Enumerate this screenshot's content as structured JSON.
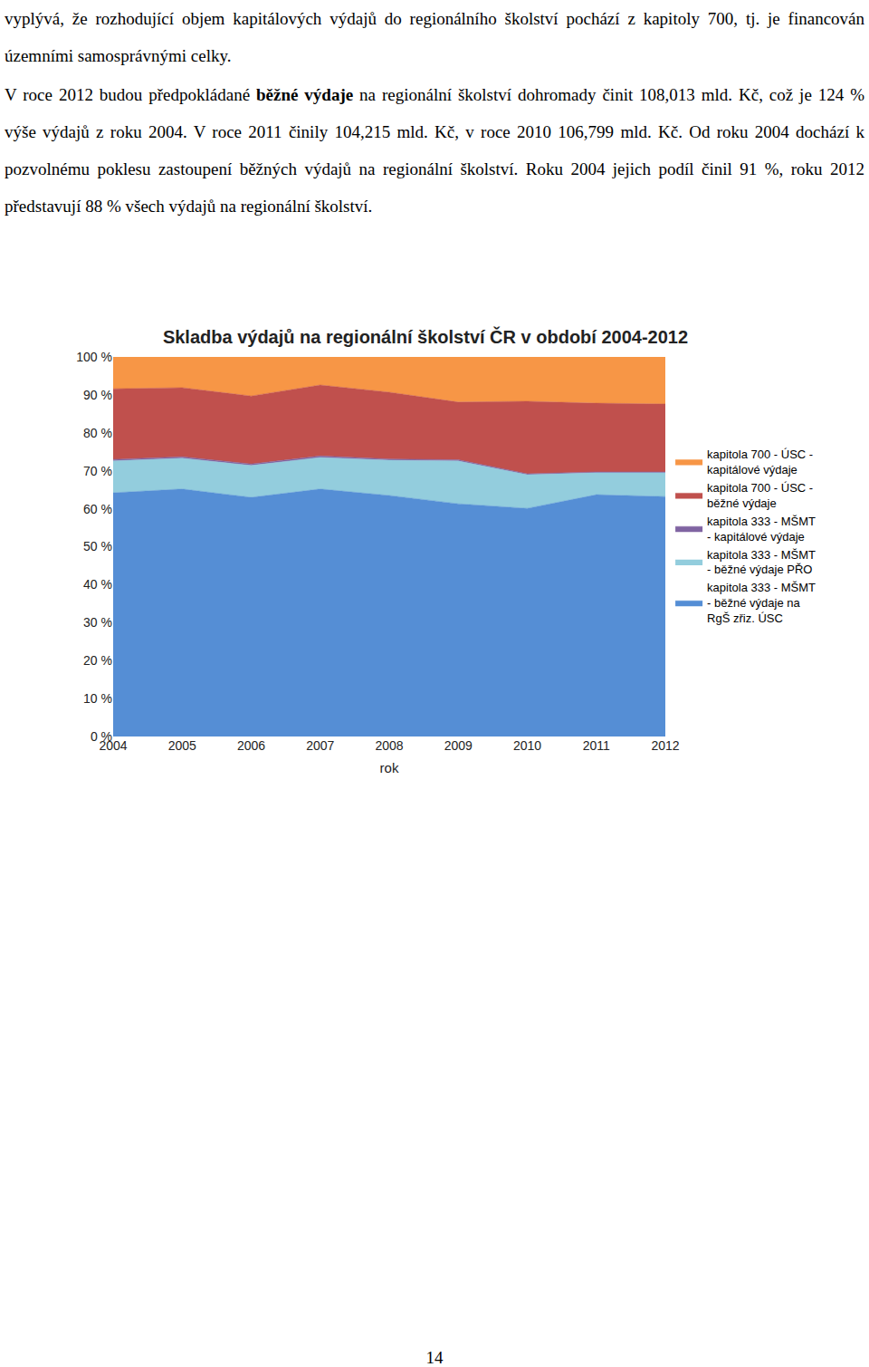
{
  "paragraphs": [
    [
      {
        "text": "vyplývá, že rozhodující objem kapitálových výdajů do regionálního školství pochází z kapitoly 700, tj. je financován územními samosprávnými celky."
      }
    ],
    [
      {
        "text": "V roce 2012 budou předpokládané "
      },
      {
        "text": "běžné výdaje",
        "bold": true
      },
      {
        "text": " na regionální školství dohromady činit 108,013 mld. Kč, což je 124 % výše výdajů z roku 2004. V roce 2011 činily 104,215 mld. Kč, v roce 2010 106,799 mld. Kč. Od roku 2004 dochází k pozvolnému poklesu zastoupení běžných výdajů na regionální školství. Roku 2004 jejich podíl činil 91 %, roku 2012 představují 88 % všech výdajů na regionální školství."
      }
    ]
  ],
  "chart_data": {
    "type": "area",
    "title": "Skladba výdajů na regionální školství ČR v období 2004-2012",
    "x_label": "rok",
    "categories": [
      "2004",
      "2005",
      "2006",
      "2007",
      "2008",
      "2009",
      "2010",
      "2011",
      "2012"
    ],
    "stacked": true,
    "grid": false,
    "legend": "right",
    "ylim": [
      0,
      100
    ],
    "yticks": [
      {
        "value": 0,
        "label": "0 %"
      },
      {
        "value": 10,
        "label": "10 %"
      },
      {
        "value": 20,
        "label": "20 %"
      },
      {
        "value": 30,
        "label": "30 %"
      },
      {
        "value": 40,
        "label": "40 %"
      },
      {
        "value": 50,
        "label": "50 %"
      },
      {
        "value": 60,
        "label": "60 %"
      },
      {
        "value": 70,
        "label": "70 %"
      },
      {
        "value": 80,
        "label": "80 %"
      },
      {
        "value": 90,
        "label": "90 %"
      },
      {
        "value": 100,
        "label": "100 %"
      }
    ],
    "series": [
      {
        "name": "kapitola 333 - MŠMT\n- běžné výdaje na\nRgŠ zřiz. ÚSC",
        "color": "#558ed5",
        "values": [
          64.2,
          65.2,
          63.0,
          65.2,
          63.5,
          61.3,
          60.1,
          63.7,
          63.2
        ]
      },
      {
        "name": "kapitola 333 - MŠMT\n- běžné výdaje PŘO",
        "color": "#93cddd",
        "values": [
          8.4,
          8.1,
          8.4,
          8.3,
          9.3,
          11.3,
          8.9,
          5.8,
          6.3
        ]
      },
      {
        "name": "kapitola 333 - MŠMT\n- kapitálové výdaje",
        "color": "#8064a2",
        "values": [
          0.4,
          0.4,
          0.4,
          0.4,
          0.3,
          0.3,
          0.2,
          0.2,
          0.2
        ]
      },
      {
        "name": "kapitola 700 - ÚSC -\nběžné výdaje",
        "color": "#c0504d",
        "values": [
          18.6,
          18.2,
          17.9,
          18.7,
          17.6,
          15.2,
          19.1,
          18.1,
          17.9
        ]
      },
      {
        "name": "kapitola 700 - ÚSC -\nkapitálové výdaje",
        "color": "#f79646",
        "values": [
          8.4,
          8.1,
          10.3,
          7.4,
          9.3,
          11.9,
          11.7,
          12.2,
          12.4
        ]
      }
    ]
  },
  "page_number": "14"
}
